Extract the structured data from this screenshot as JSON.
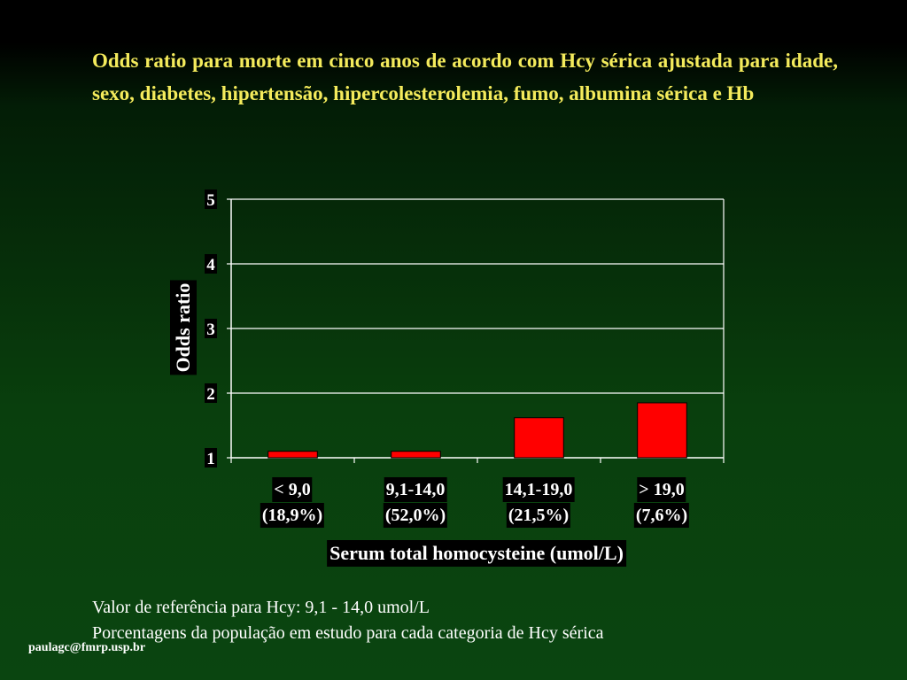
{
  "slide": {
    "title": "Odds ratio para morte em cinco anos de acordo com Hcy sérica ajustada para idade, sexo, diabetes, hipertensão, hipercolesterolemia, fumo, albumina sérica e Hb",
    "notes": [
      "Valor de referência para Hcy: 9,1 - 14,0 umol/L",
      "Porcentagens da população em estudo para cada categoria de Hcy sérica"
    ],
    "footer": "paulagc@fmrp.usp.br"
  },
  "colors": {
    "title": "#f4eb5c",
    "bar": "#ff0000",
    "bar_outline": "#000000",
    "grid": "#ffffff"
  },
  "chart_data": {
    "type": "bar",
    "categories": [
      "< 9,0",
      "9,1-14,0",
      "14,1-19,0",
      "> 19,0"
    ],
    "category_sublabels": [
      "(18,9%)",
      "(52,0%)",
      "(21,5%)",
      "(7,6%)"
    ],
    "values": [
      1.1,
      1.1,
      1.62,
      1.85
    ],
    "xlabel": "Serum total homocysteine (umol/L)",
    "ylabel": "Odds ratio",
    "ylim": [
      1,
      5
    ],
    "yticks": [
      1,
      2,
      3,
      4,
      5
    ],
    "grid": true,
    "legend": "none"
  }
}
